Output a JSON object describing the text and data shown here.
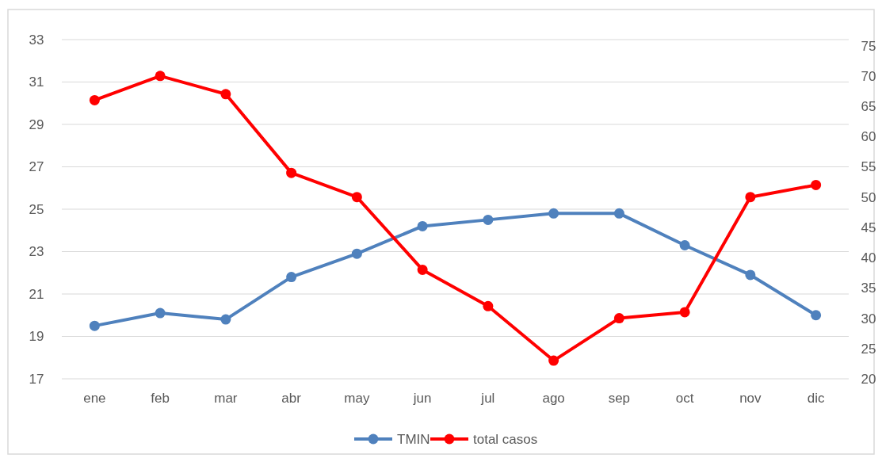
{
  "chart_data": {
    "type": "line",
    "categories": [
      "ene",
      "feb",
      "mar",
      "abr",
      "may",
      "jun",
      "jul",
      "ago",
      "sep",
      "oct",
      "nov",
      "dic"
    ],
    "series": [
      {
        "name": "TMIN",
        "color": "#4f81bd",
        "values": [
          19.5,
          20.1,
          19.8,
          21.8,
          22.9,
          24.2,
          24.5,
          24.8,
          24.8,
          23.3,
          21.9,
          20.0
        ]
      },
      {
        "name": "total casos",
        "color": "#ff0000",
        "axis": "y2",
        "values": [
          66,
          70,
          67,
          54,
          50,
          38,
          32,
          23,
          30,
          31,
          50,
          52
        ]
      }
    ],
    "ylim": [
      17,
      33
    ],
    "yticks": [
      17,
      19,
      21,
      23,
      25,
      27,
      29,
      31,
      33
    ],
    "y2lim": [
      20,
      76
    ],
    "y2ticks": [
      20,
      25,
      30,
      35,
      40,
      45,
      50,
      55,
      60,
      65,
      70,
      75
    ],
    "grid": "y",
    "legend": "bottom",
    "marker": "circle",
    "line_style": "solid"
  }
}
